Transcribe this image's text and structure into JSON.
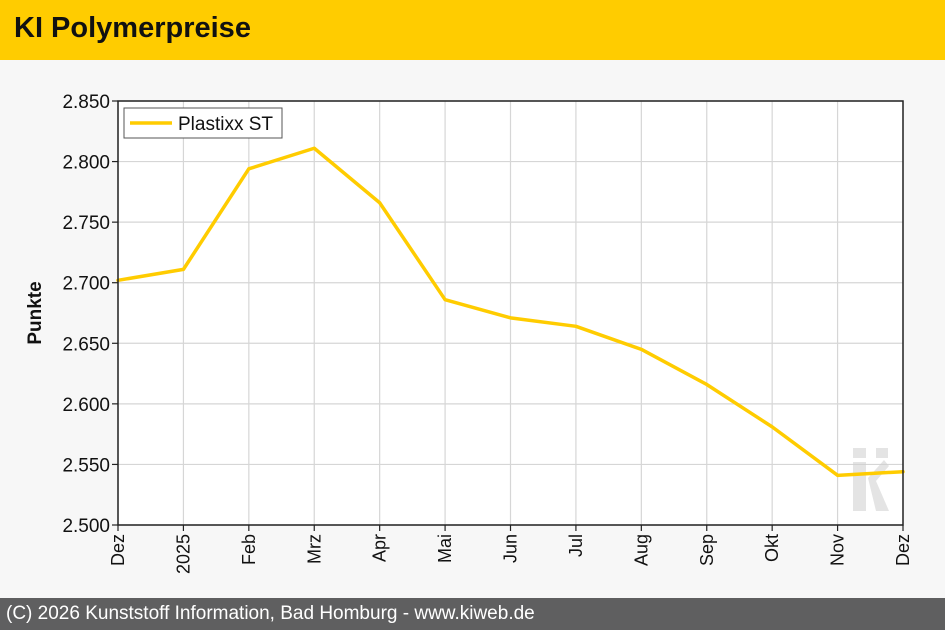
{
  "header": {
    "title": "KI Polymerpreise"
  },
  "footer": {
    "text": "(C) 2026 Kunststoff Information, Bad Homburg - www.kiweb.de"
  },
  "chart_data": {
    "type": "line",
    "ylabel": "Punkte",
    "xlabel": "",
    "categories": [
      "Dez",
      "2025",
      "Feb",
      "Mrz",
      "Apr",
      "Mai",
      "Jun",
      "Jul",
      "Aug",
      "Sep",
      "Okt",
      "Nov",
      "Dez"
    ],
    "series": [
      {
        "name": "Plastixx ST",
        "color": "#ffcc00",
        "values": [
          2702,
          2711,
          2794,
          2811,
          2766,
          2686,
          2671,
          2664,
          2645,
          2616,
          2581,
          2541,
          2544
        ]
      }
    ],
    "ylim": [
      2500,
      2850
    ],
    "yticks": [
      2500,
      2550,
      2600,
      2650,
      2700,
      2750,
      2800,
      2850
    ],
    "ytick_labels": [
      "2.500",
      "2.550",
      "2.600",
      "2.650",
      "2.700",
      "2.750",
      "2.800",
      "2.850"
    ],
    "grid": true,
    "legend": "top-left",
    "watermark": "ki"
  }
}
